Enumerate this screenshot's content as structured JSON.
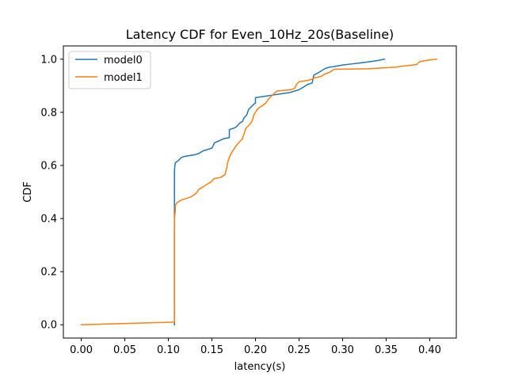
{
  "chart_data": {
    "type": "line",
    "title": "Latency CDF for Even_10Hz_20s(Baseline)",
    "xlabel": "latency(s)",
    "ylabel": "CDF",
    "xlim": [
      -0.0205,
      0.4305
    ],
    "ylim": [
      -0.05,
      1.05
    ],
    "xticks": [
      0.0,
      0.05,
      0.1,
      0.15,
      0.2,
      0.25,
      0.3,
      0.35,
      0.4
    ],
    "xtick_labels": [
      "0.00",
      "0.05",
      "0.10",
      "0.15",
      "0.20",
      "0.25",
      "0.30",
      "0.35",
      "0.40"
    ],
    "yticks": [
      0.0,
      0.2,
      0.4,
      0.6,
      0.8,
      1.0
    ],
    "ytick_labels": [
      "0.0",
      "0.2",
      "0.4",
      "0.6",
      "0.8",
      "1.0"
    ],
    "grid": false,
    "legend_position": "upper-left",
    "series": [
      {
        "name": "model0",
        "color": "#1f77b4",
        "x": [
          0.107,
          0.107,
          0.1075,
          0.108,
          0.11,
          0.112,
          0.115,
          0.12,
          0.13,
          0.135,
          0.14,
          0.15,
          0.153,
          0.163,
          0.17,
          0.17,
          0.175,
          0.178,
          0.182,
          0.185,
          0.187,
          0.19,
          0.192,
          0.195,
          0.198,
          0.2,
          0.2,
          0.21,
          0.22,
          0.23,
          0.24,
          0.245,
          0.25,
          0.255,
          0.26,
          0.265,
          0.267,
          0.27,
          0.275,
          0.28,
          0.285,
          0.29,
          0.3,
          0.31,
          0.32,
          0.33,
          0.34,
          0.348
        ],
        "y": [
          0.0,
          0.58,
          0.6,
          0.61,
          0.615,
          0.62,
          0.63,
          0.635,
          0.64,
          0.645,
          0.655,
          0.665,
          0.685,
          0.7,
          0.705,
          0.735,
          0.74,
          0.745,
          0.76,
          0.765,
          0.78,
          0.79,
          0.81,
          0.82,
          0.83,
          0.835,
          0.855,
          0.86,
          0.865,
          0.87,
          0.875,
          0.88,
          0.885,
          0.895,
          0.905,
          0.91,
          0.94,
          0.945,
          0.955,
          0.965,
          0.97,
          0.972,
          0.978,
          0.982,
          0.986,
          0.99,
          0.995,
          1.0
        ],
        "line_width": 1.5
      },
      {
        "name": "model1",
        "color": "#ff7f0e",
        "x": [
          0.0,
          0.107,
          0.107,
          0.108,
          0.108,
          0.11,
          0.115,
          0.125,
          0.13,
          0.132,
          0.135,
          0.14,
          0.15,
          0.152,
          0.16,
          0.165,
          0.167,
          0.168,
          0.17,
          0.172,
          0.175,
          0.178,
          0.182,
          0.185,
          0.187,
          0.189,
          0.192,
          0.195,
          0.197,
          0.198,
          0.2,
          0.203,
          0.208,
          0.212,
          0.215,
          0.218,
          0.221,
          0.225,
          0.24,
          0.245,
          0.247,
          0.25,
          0.26,
          0.265,
          0.268,
          0.275,
          0.28,
          0.285,
          0.29,
          0.33,
          0.36,
          0.385,
          0.388,
          0.392,
          0.4,
          0.408
        ],
        "y": [
          0.0,
          0.01,
          0.4,
          0.43,
          0.45,
          0.46,
          0.47,
          0.48,
          0.49,
          0.495,
          0.51,
          0.52,
          0.54,
          0.55,
          0.555,
          0.565,
          0.59,
          0.61,
          0.63,
          0.645,
          0.66,
          0.675,
          0.69,
          0.7,
          0.72,
          0.74,
          0.75,
          0.76,
          0.775,
          0.79,
          0.8,
          0.815,
          0.825,
          0.835,
          0.85,
          0.86,
          0.87,
          0.88,
          0.885,
          0.89,
          0.905,
          0.915,
          0.92,
          0.925,
          0.93,
          0.935,
          0.945,
          0.95,
          0.962,
          0.964,
          0.97,
          0.98,
          0.99,
          0.993,
          0.997,
          1.0
        ],
        "line_width": 1.5
      }
    ]
  }
}
